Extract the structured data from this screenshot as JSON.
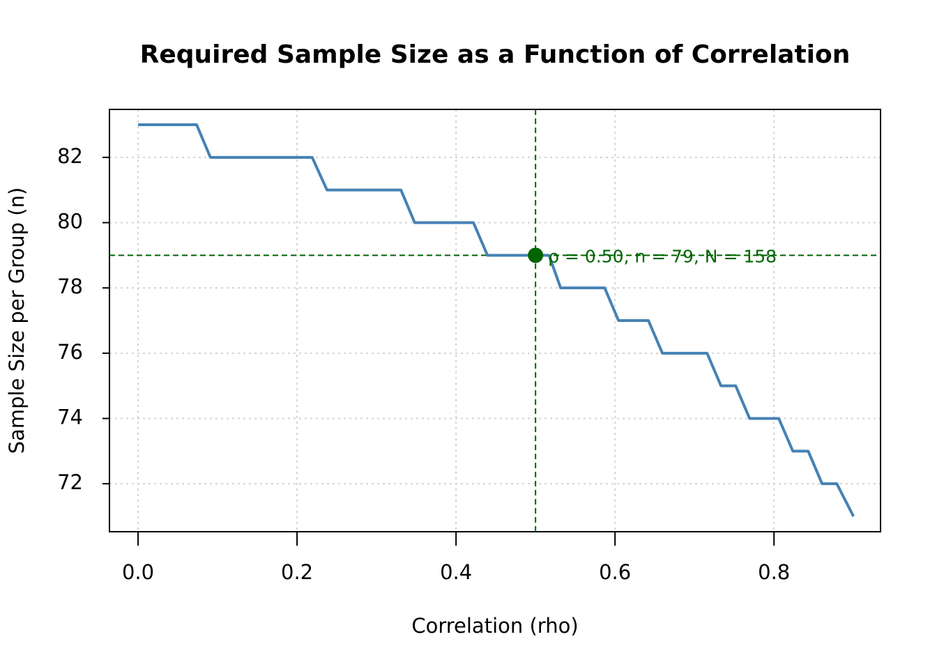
{
  "chart_data": {
    "type": "line",
    "title": "Required Sample Size as a Function of Correlation",
    "x_label": "Correlation (rho)",
    "y_label": "Sample Size per Group (n)",
    "x": [
      0.0,
      0.0737,
      0.091,
      0.219,
      0.2377,
      0.3307,
      0.348,
      0.4219,
      0.4395,
      0.517,
      0.5316,
      0.587,
      0.6044,
      0.642,
      0.6596,
      0.7158,
      0.7333,
      0.7518,
      0.7693,
      0.806,
      0.8237,
      0.843,
      0.8605,
      0.879,
      0.9
    ],
    "values": [
      83,
      83,
      82,
      82,
      81,
      81,
      80,
      80,
      79,
      79,
      78,
      78,
      77,
      77,
      76,
      76,
      75,
      75,
      74,
      74,
      73,
      73,
      72,
      72,
      71
    ],
    "color": "#4682b4",
    "xlim": [
      -0.036,
      0.934
    ],
    "ylim": [
      70.53,
      83.47
    ],
    "xticks": [
      {
        "value": 0,
        "label": "0.0"
      },
      0.2,
      0.4,
      0.6,
      0.8
    ],
    "yticks": [
      72,
      74,
      76,
      78,
      80,
      82
    ],
    "grid": true,
    "highlight": {
      "x": 0.5,
      "y": 79,
      "label": "ρ = 0.50, n = 79, N = 158",
      "color": "#006400"
    }
  }
}
